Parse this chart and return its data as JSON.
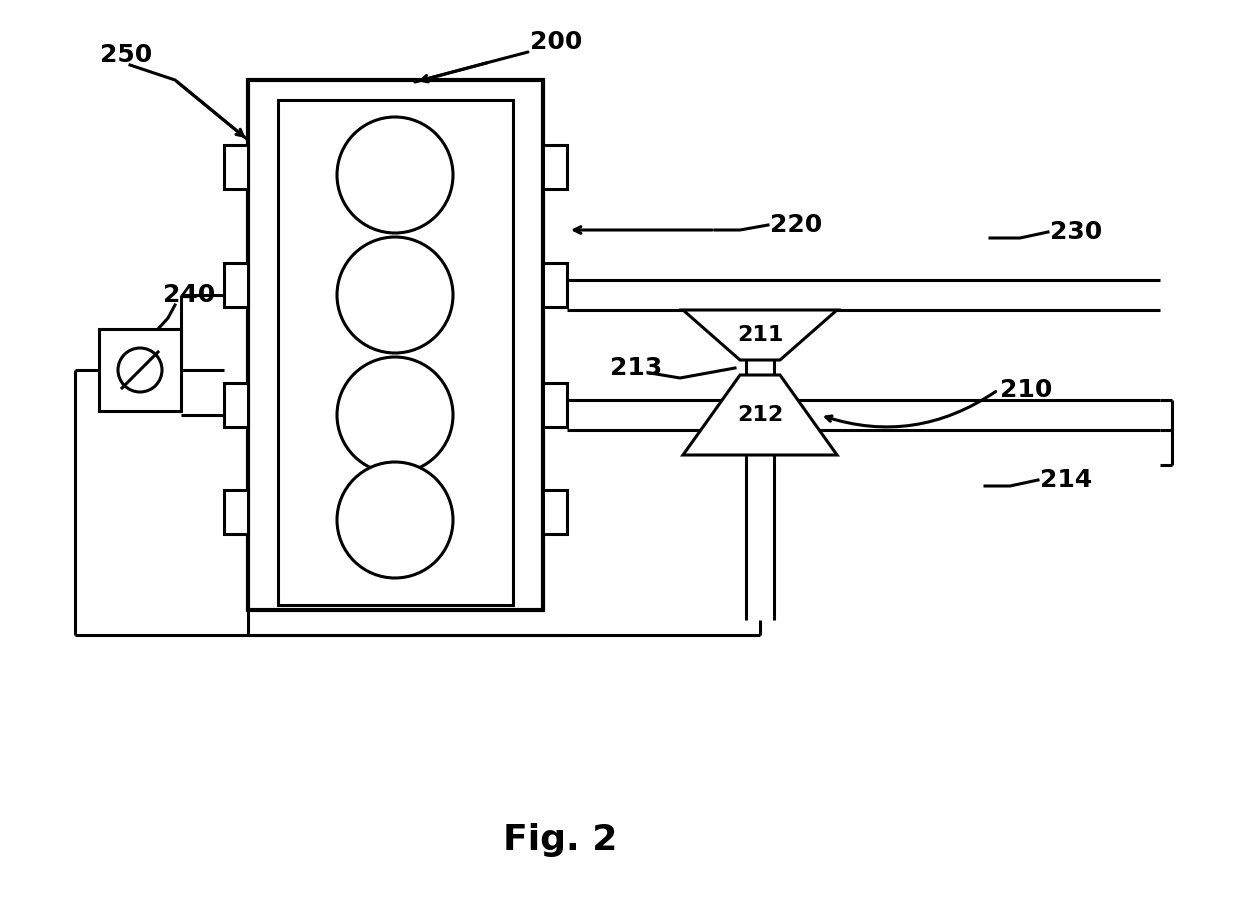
{
  "bg_color": "#ffffff",
  "line_color": "#000000",
  "fig_label": "Fig. 2",
  "fig_label_fontsize": 26,
  "lw": 2.2,
  "lw_thick": 3.0,
  "label_fontsize": 18
}
